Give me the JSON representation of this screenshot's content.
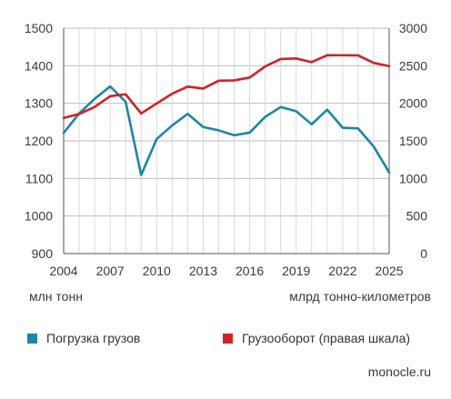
{
  "chart_data": {
    "type": "line",
    "x": [
      2004,
      2005,
      2006,
      2007,
      2008,
      2009,
      2010,
      2011,
      2012,
      2013,
      2014,
      2015,
      2016,
      2017,
      2018,
      2019,
      2020,
      2021,
      2022,
      2023,
      2024,
      2025
    ],
    "x_ticks": [
      "2004",
      "2007",
      "2010",
      "2013",
      "2016",
      "2019",
      "2022",
      "2025"
    ],
    "left_axis": {
      "label": "млн тонн",
      "ylim": [
        900,
        1500
      ],
      "ticks": [
        "900",
        "1000",
        "1100",
        "1200",
        "1300",
        "1400",
        "1500"
      ]
    },
    "right_axis": {
      "label": "млрд тонно-километров",
      "ylim": [
        0,
        3000
      ],
      "ticks": [
        "0",
        "500",
        "1000",
        "1500",
        "2000",
        "2500",
        "3000"
      ]
    },
    "series": [
      {
        "name": "Погрузка грузов",
        "axis": "left",
        "color": "#1a87a8",
        "values": [
          1221,
          1273,
          1312,
          1345,
          1304,
          1109,
          1205,
          1241,
          1272,
          1237,
          1228,
          1215,
          1222,
          1264,
          1290,
          1279,
          1244,
          1283,
          1235,
          1233,
          1185,
          1116
        ]
      },
      {
        "name": "Грузооборот (правая шкала)",
        "axis": "right",
        "color": "#d42027",
        "values": [
          1805,
          1858,
          1951,
          2095,
          2120,
          1865,
          1998,
          2128,
          2222,
          2196,
          2301,
          2305,
          2343,
          2491,
          2589,
          2597,
          2548,
          2639,
          2640,
          2638,
          2538,
          2495
        ]
      }
    ],
    "grid": true,
    "legend": "bottom"
  },
  "source": "monocle.ru"
}
